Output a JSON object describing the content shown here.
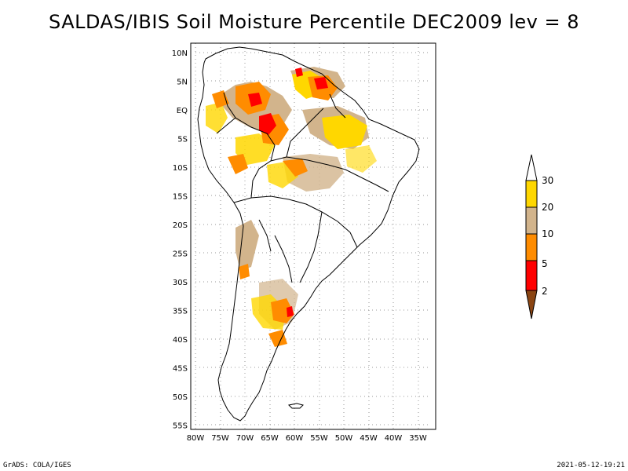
{
  "title": "SALDAS/IBIS Soil Moisture Percentile DEC2009 lev = 8",
  "footer": {
    "left": "GrADS: COLA/IGES",
    "right": "2021-05-12-19:21"
  },
  "axes": {
    "lat_labels": [
      "10N",
      "5N",
      "EQ",
      "5S",
      "10S",
      "15S",
      "20S",
      "25S",
      "30S",
      "35S",
      "40S",
      "45S",
      "50S",
      "55S"
    ],
    "lat_values": [
      10,
      5,
      0,
      -5,
      -10,
      -15,
      -20,
      -25,
      -30,
      -35,
      -40,
      -45,
      -50,
      -55
    ],
    "lon_labels": [
      "80W",
      "75W",
      "70W",
      "65W",
      "60W",
      "55W",
      "50W",
      "45W",
      "40W",
      "35W"
    ],
    "lon_values": [
      -80,
      -75,
      -70,
      -65,
      -60,
      -55,
      -50,
      -45,
      -40,
      -35
    ],
    "lon_range": [
      -81,
      -31
    ],
    "lat_range": [
      12,
      -56
    ],
    "grid": "dotted"
  },
  "legend": {
    "labels": [
      "30",
      "20",
      "10",
      "5",
      "2"
    ],
    "bins": [
      {
        "label": "30",
        "color": "#ffd700"
      },
      {
        "label": "20",
        "color": "#d2b48c"
      },
      {
        "label": "10",
        "color": "#ff8c00"
      },
      {
        "label": "5",
        "color": "#ff0000"
      },
      {
        "label": "2",
        "color": "#8b4513"
      }
    ],
    "top_color": "#ffffff",
    "bottom_color": "#8b4513"
  },
  "colors": {
    "yellow": "#ffd700",
    "tan": "#d2b48c",
    "orange": "#ff8c00",
    "red": "#ff0000",
    "brown": "#8b4513"
  }
}
